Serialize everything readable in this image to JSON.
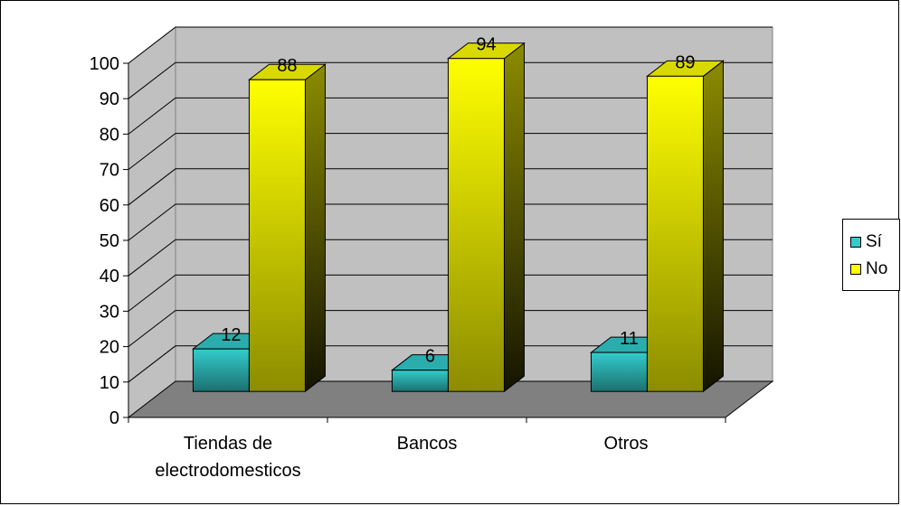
{
  "chart_data": {
    "type": "bar",
    "categories": [
      "Tiendas de electrodomesticos",
      "Bancos",
      "Otros"
    ],
    "category_lines": [
      [
        "Tiendas de",
        "electrodomesticos"
      ],
      [
        "Bancos"
      ],
      [
        "Otros"
      ]
    ],
    "series": [
      {
        "name": "Sí",
        "values": [
          12,
          6,
          11
        ],
        "color": "#33CCCC"
      },
      {
        "name": "No",
        "values": [
          88,
          94,
          89
        ],
        "color": "#FFFF00"
      }
    ],
    "ylim": [
      0,
      100
    ],
    "yticks": [
      0,
      10,
      20,
      30,
      40,
      50,
      60,
      70,
      80,
      90,
      100
    ],
    "grid": true,
    "three_d": true,
    "legend_position": "right",
    "colors": {
      "wall": "#C0C0C0",
      "floor": "#808080"
    }
  },
  "legend": {
    "items": [
      {
        "label": "Sí",
        "color": "#33CCCC"
      },
      {
        "label": "No",
        "color": "#FFFF00"
      }
    ]
  }
}
